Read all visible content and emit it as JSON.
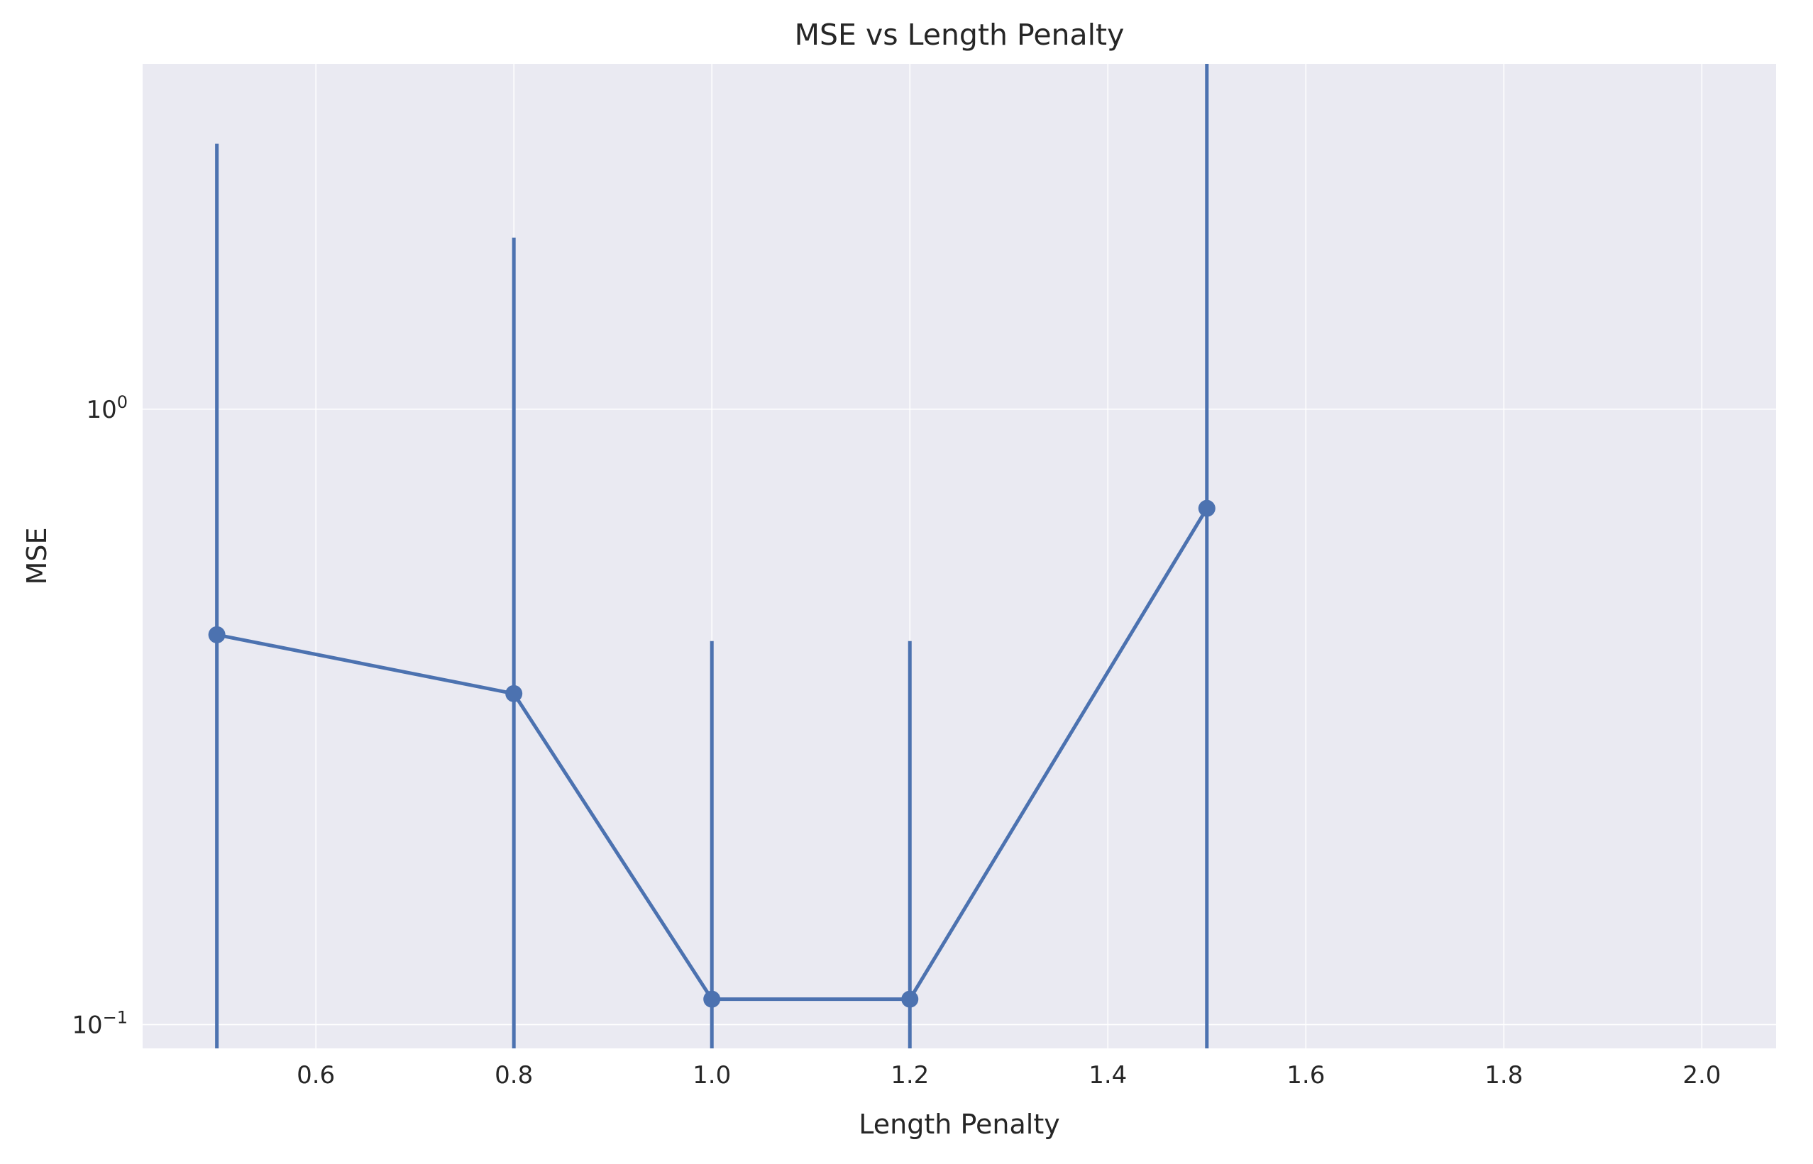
{
  "chart_data": {
    "type": "line",
    "title": "MSE vs Length Penalty",
    "xlabel": "Length Penalty",
    "ylabel": "MSE",
    "yscale": "log",
    "xlim": [
      0.425,
      2.075
    ],
    "ylim": [
      0.0915,
      3.64
    ],
    "grid": true,
    "x_ticks": [
      {
        "value": 0.6,
        "label": "0.6"
      },
      {
        "value": 0.8,
        "label": "0.8"
      },
      {
        "value": 1.0,
        "label": "1.0"
      },
      {
        "value": 1.2,
        "label": "1.2"
      },
      {
        "value": 1.4,
        "label": "1.4"
      },
      {
        "value": 1.6,
        "label": "1.6"
      },
      {
        "value": 1.8,
        "label": "1.8"
      },
      {
        "value": 2.0,
        "label": "2.0"
      }
    ],
    "y_ticks": [
      {
        "value": 1,
        "base": "10",
        "exp": "0"
      },
      {
        "value": 0.1,
        "base": "10",
        "exp": "−1"
      }
    ],
    "series": [
      {
        "color": "#4c72b0",
        "points": [
          {
            "x": 0.5,
            "y": 0.43,
            "err_low": 0.0915,
            "err_high": 2.7
          },
          {
            "x": 0.8,
            "y": 0.345,
            "err_low": 0.0915,
            "err_high": 1.9
          },
          {
            "x": 1.0,
            "y": 0.11,
            "err_low": 0.0915,
            "err_high": 0.42
          },
          {
            "x": 1.2,
            "y": 0.11,
            "err_low": 0.0915,
            "err_high": 0.42
          },
          {
            "x": 1.5,
            "y": 0.69,
            "err_low": 0.0915,
            "err_high": 4.0
          }
        ]
      }
    ]
  },
  "colors": {
    "plot_background": "#eaeaf2",
    "grid": "#ffffff",
    "series": "#4c72b0"
  }
}
